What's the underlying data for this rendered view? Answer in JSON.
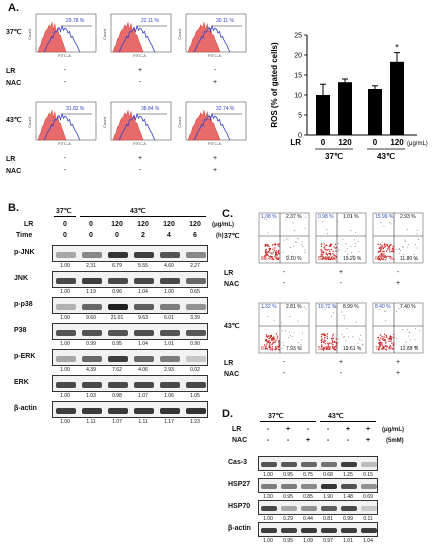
{
  "panelA": {
    "label": "A.",
    "row_labels": [
      "37℃",
      "43℃"
    ],
    "treatments": [
      "LR",
      "NAC"
    ],
    "conditions": [
      {
        "lr": "-",
        "nac": "-"
      },
      {
        "lr": "+",
        "nac": "-"
      },
      {
        "lr": "-",
        "nac": "+"
      },
      {
        "lr": "-",
        "nac": "-"
      },
      {
        "lr": "+",
        "nac": "-"
      },
      {
        "lr": "+",
        "nac": "+"
      }
    ],
    "histograms": [
      {
        "pct": "29.78 %",
        "xaxis": "FITC-A",
        "yaxis": "Count"
      },
      {
        "pct": "22.11 %",
        "xaxis": "FITC-A",
        "yaxis": "Count"
      },
      {
        "pct": "30.11 %",
        "xaxis": "FITC-A",
        "yaxis": "Count"
      },
      {
        "pct": "31.82 %",
        "xaxis": "FITC-A",
        "yaxis": "Count"
      },
      {
        "pct": "38.84 %",
        "xaxis": "FITC-A",
        "yaxis": "Count"
      },
      {
        "pct": "32.74 %",
        "xaxis": "FITC-A",
        "yaxis": "Count"
      }
    ]
  },
  "chart_data": {
    "type": "bar",
    "ylabel": "ROS (% of gated cells)",
    "ylim": [
      0,
      25
    ],
    "yticks": [
      "0",
      "5",
      "10",
      "15",
      "20",
      "25"
    ],
    "categories": [
      "0",
      "120",
      "0",
      "120"
    ],
    "values": [
      10,
      13.2,
      11.5,
      18.3
    ],
    "errors": [
      2.7,
      0.8,
      0.8,
      2.3
    ],
    "xlabel_prefix": "LR",
    "xlabel_unit": "(μg/mL)",
    "groups": [
      "37℃",
      "43℃"
    ],
    "annotation": "*",
    "bar_color": "#000000"
  },
  "panelB": {
    "label": "B.",
    "temps": [
      "37℃",
      "43℃"
    ],
    "lr_label": "LR",
    "time_label": "Time",
    "unit_lr": "(μg/mL)",
    "unit_time": "(h)",
    "lr_values": [
      "0",
      "0",
      "120",
      "120",
      "120",
      "120"
    ],
    "time_values": [
      "0",
      "0",
      "0",
      "2",
      "4",
      "6"
    ],
    "blots": [
      {
        "name": "p-JNK",
        "values": [
          "1.00",
          "2.31",
          "6.79",
          "5.55",
          "4.60",
          "2.27"
        ],
        "intensity": [
          0.3,
          0.45,
          0.85,
          0.8,
          0.7,
          0.45
        ]
      },
      {
        "name": "JNK",
        "values": [
          "1.00",
          "1.19",
          "0.96",
          "1.04",
          "1.00",
          "0.65"
        ],
        "intensity": [
          0.75,
          0.8,
          0.75,
          0.75,
          0.75,
          0.6
        ]
      },
      {
        "name": "p-p38",
        "values": [
          "1.00",
          "9.60",
          "21.01",
          "9.63",
          "6.01",
          "3.39"
        ],
        "intensity": [
          0.25,
          0.6,
          0.95,
          0.65,
          0.5,
          0.4
        ]
      },
      {
        "name": "P38",
        "values": [
          "1.00",
          "0.99",
          "0.95",
          "1.04",
          "1.01",
          "0.90"
        ],
        "intensity": [
          0.7,
          0.7,
          0.7,
          0.72,
          0.7,
          0.68
        ]
      },
      {
        "name": "p-ERK",
        "values": [
          "1.00",
          "4.39",
          "7.62",
          "4.06",
          "2.93",
          "0.02"
        ],
        "intensity": [
          0.3,
          0.6,
          0.8,
          0.6,
          0.5,
          0.15
        ]
      },
      {
        "name": "ERK",
        "values": [
          "1.00",
          "1.03",
          "0.98",
          "1.07",
          "1.06",
          "1.05"
        ],
        "intensity": [
          0.75,
          0.75,
          0.75,
          0.75,
          0.75,
          0.75
        ]
      },
      {
        "name": "β-actin",
        "values": [
          "1.00",
          "1.11",
          "1.07",
          "1.11",
          "1.17",
          "1.23"
        ],
        "intensity": [
          0.8,
          0.82,
          0.82,
          0.82,
          0.84,
          0.85
        ]
      }
    ]
  },
  "panelC": {
    "label": "C.",
    "row_labels": [
      "37℃",
      "43℃"
    ],
    "treatments": [
      "LR",
      "NAC"
    ],
    "conditions": [
      {
        "lr": "-",
        "nac": "-"
      },
      {
        "lr": "+",
        "nac": "-"
      },
      {
        "lr": "-",
        "nac": "+"
      },
      {
        "lr": "-",
        "nac": "-"
      },
      {
        "lr": "+",
        "nac": "-"
      },
      {
        "lr": "+",
        "nac": "+"
      }
    ],
    "plots": [
      {
        "ul": "1.08 %",
        "ur": "2.37 %",
        "ll": "86.45 %",
        "lr": "9.10 %"
      },
      {
        "ul": "0.98 %",
        "ur": "1.01 %",
        "ll": "82.82 %",
        "lr": "15.20 %"
      },
      {
        "ul": "15.99 %",
        "ur": "2.93 %",
        "ll": "69.27 %",
        "lr": "11.80 %"
      },
      {
        "ul": "1.32 %",
        "ur": "2.81 %",
        "ll": "87.74 %",
        "lr": "7.93 %"
      },
      {
        "ul": "10.72 %",
        "ur": "8.99 %",
        "ll": "59.98 %",
        "lr": "19.61 %"
      },
      {
        "ul": "8.40 %",
        "ur": "7.40 %",
        "ll": "72.52 %",
        "lr": "12.69 %"
      }
    ]
  },
  "panelD": {
    "label": "D.",
    "temps": [
      "37℃",
      "43℃"
    ],
    "lr_label": "LR",
    "nac_label": "NAC",
    "unit_lr": "(μg/mL)",
    "unit_nac": "(5mM)",
    "lr_signs": [
      "-",
      "+",
      "-",
      "-",
      "+",
      "+"
    ],
    "nac_signs": [
      "-",
      "-",
      "+",
      "-",
      "-",
      "+"
    ],
    "blots": [
      {
        "name": "Cas-3",
        "values": [
          "1.00",
          "0.95",
          "0.75",
          "0.68",
          "1.25",
          "0.15"
        ],
        "intensity": [
          0.7,
          0.68,
          0.6,
          0.55,
          0.8,
          0.2
        ]
      },
      {
        "name": "HSP27",
        "values": [
          "1.00",
          "0.95",
          "0.85",
          "1.90",
          "1.48",
          "0.69"
        ],
        "intensity": [
          0.5,
          0.5,
          0.45,
          0.85,
          0.7,
          0.4
        ]
      },
      {
        "name": "HSP70",
        "values": [
          "1.00",
          "0.29",
          "0.44",
          "0.81",
          "0.99",
          "0.11"
        ],
        "intensity": [
          0.75,
          0.3,
          0.4,
          0.65,
          0.75,
          0.15
        ]
      },
      {
        "name": "β-actin",
        "values": [
          "1.00",
          "0.95",
          "1.09",
          "0.97",
          "1.01",
          "1.04"
        ],
        "intensity": [
          0.8,
          0.78,
          0.82,
          0.8,
          0.8,
          0.82
        ]
      }
    ]
  }
}
